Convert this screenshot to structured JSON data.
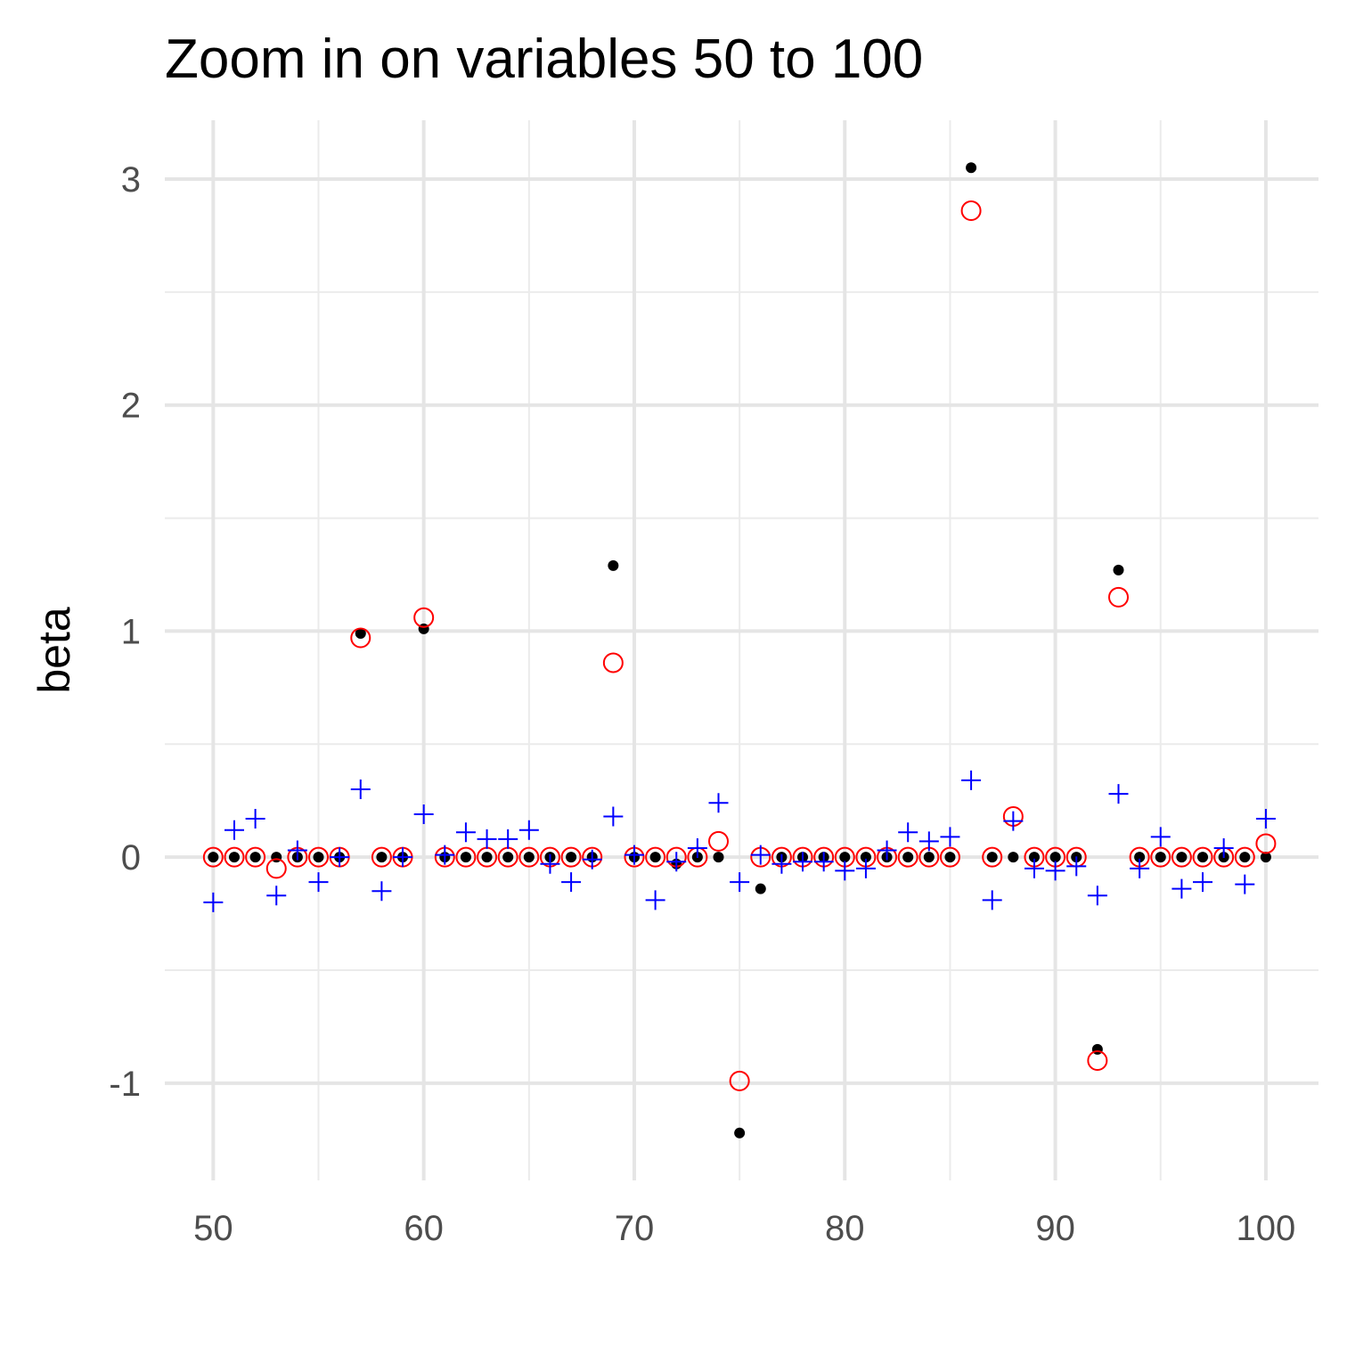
{
  "chart_data": {
    "type": "scatter",
    "title": "Zoom in on variables 50 to 100",
    "xlabel": "",
    "ylabel": "beta",
    "xlim": [
      47.7,
      102.5
    ],
    "ylim": [
      -1.43,
      3.26
    ],
    "x_ticks": [
      50,
      60,
      70,
      80,
      90,
      100
    ],
    "x_tick_labels": [
      "50",
      "60",
      "70",
      "80",
      "90",
      "100"
    ],
    "y_ticks": [
      -1,
      0,
      1,
      2,
      3
    ],
    "y_tick_labels": [
      "-1",
      "0",
      "1",
      "2",
      "3"
    ],
    "grid": true,
    "legend": "none",
    "colors": {
      "black_dot": "#000000",
      "red_circle": "#ff0000",
      "blue_plus": "#0000ff"
    },
    "series": [
      {
        "marker": "filled-dot",
        "color": "#000000",
        "x": [
          50,
          51,
          52,
          53,
          54,
          55,
          56,
          57,
          58,
          59,
          60,
          61,
          62,
          63,
          64,
          65,
          66,
          67,
          68,
          69,
          70,
          71,
          72,
          73,
          74,
          75,
          76,
          77,
          78,
          79,
          80,
          81,
          82,
          83,
          84,
          85,
          86,
          87,
          88,
          89,
          90,
          91,
          92,
          93,
          94,
          95,
          96,
          97,
          98,
          99,
          100
        ],
        "y": [
          0,
          0,
          0,
          0,
          0,
          0,
          0,
          0.99,
          0,
          0,
          1.01,
          0,
          0,
          0,
          0,
          0,
          0,
          0,
          0,
          1.29,
          0,
          0,
          -0.03,
          0,
          0,
          -1.22,
          -0.14,
          0,
          0,
          0,
          0,
          0,
          0,
          0,
          0,
          0,
          3.05,
          0,
          0,
          0,
          0,
          0,
          -0.85,
          1.27,
          0,
          0,
          0,
          0,
          0,
          0,
          0
        ]
      },
      {
        "marker": "open-circle",
        "color": "#ff0000",
        "x": [
          50,
          51,
          52,
          53,
          54,
          55,
          56,
          57,
          58,
          59,
          60,
          61,
          62,
          63,
          64,
          65,
          66,
          67,
          68,
          69,
          70,
          71,
          72,
          73,
          74,
          75,
          76,
          77,
          78,
          79,
          80,
          81,
          82,
          83,
          84,
          85,
          86,
          87,
          88,
          89,
          90,
          91,
          92,
          93,
          94,
          95,
          96,
          97,
          98,
          99,
          100
        ],
        "y": [
          0,
          0,
          0,
          -0.05,
          0,
          0,
          0,
          0.97,
          0,
          0,
          1.06,
          0,
          0,
          0,
          0,
          0,
          0,
          0,
          0,
          0.86,
          0,
          0,
          0,
          0,
          0.07,
          -0.99,
          0,
          0,
          0,
          0,
          0,
          0,
          0,
          0,
          0,
          0,
          2.86,
          0,
          0.18,
          0,
          0,
          0,
          -0.9,
          1.15,
          0,
          0,
          0,
          0,
          0,
          0,
          0.06
        ]
      },
      {
        "marker": "plus",
        "color": "#0000ff",
        "x": [
          50,
          51,
          52,
          53,
          54,
          55,
          56,
          57,
          58,
          59,
          60,
          61,
          62,
          63,
          64,
          65,
          66,
          67,
          68,
          69,
          70,
          71,
          72,
          73,
          74,
          75,
          76,
          77,
          78,
          79,
          80,
          81,
          82,
          83,
          84,
          85,
          86,
          87,
          88,
          89,
          90,
          91,
          92,
          93,
          94,
          95,
          96,
          97,
          98,
          99,
          100
        ],
        "y": [
          -0.2,
          0.12,
          0.17,
          -0.17,
          0.03,
          -0.11,
          0,
          0.3,
          -0.15,
          0,
          0.19,
          0.01,
          0.11,
          0.08,
          0.08,
          0.12,
          -0.03,
          -0.11,
          -0.01,
          0.18,
          0.01,
          -0.19,
          -0.02,
          0.04,
          0.24,
          -0.11,
          0.01,
          -0.03,
          -0.02,
          -0.02,
          -0.06,
          -0.05,
          0.03,
          0.11,
          0.07,
          0.09,
          0.34,
          -0.19,
          0.16,
          -0.05,
          -0.06,
          -0.04,
          -0.17,
          0.28,
          -0.05,
          0.09,
          -0.14,
          -0.11,
          0.04,
          -0.12,
          0.17
        ]
      }
    ]
  }
}
